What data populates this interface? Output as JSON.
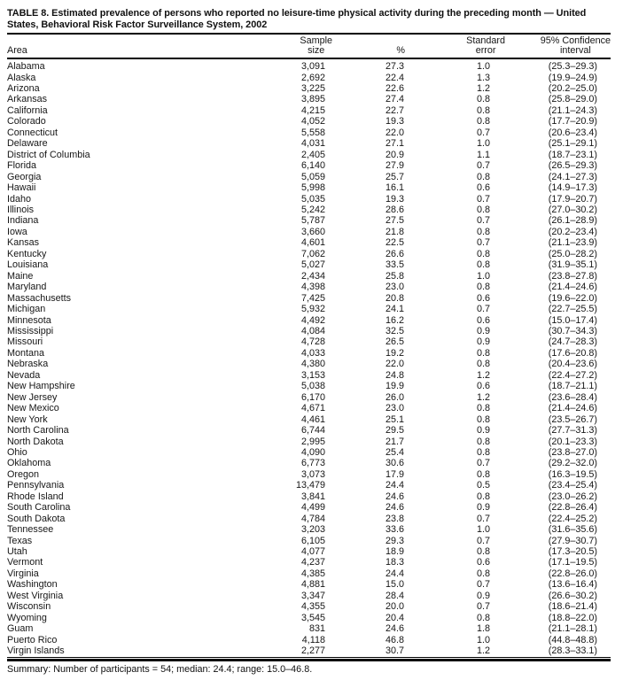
{
  "title": "TABLE 8. Estimated prevalence of persons who reported no leisure-time physical activity during the preceding month — United\nStates, Behavioral Risk Factor Surveillance System, 2002",
  "table": {
    "columns": {
      "area": "Area",
      "sample_size": "Sample\nsize",
      "percent": "%",
      "standard_error": "Standard\nerror",
      "confidence_interval": "95% Confidence\ninterval"
    },
    "rows": [
      {
        "area": "Alabama",
        "sample_size": "3,091",
        "percent": "27.3",
        "standard_error": "1.0",
        "confidence_interval": "(25.3–29.3)"
      },
      {
        "area": "Alaska",
        "sample_size": "2,692",
        "percent": "22.4",
        "standard_error": "1.3",
        "confidence_interval": "(19.9–24.9)"
      },
      {
        "area": "Arizona",
        "sample_size": "3,225",
        "percent": "22.6",
        "standard_error": "1.2",
        "confidence_interval": "(20.2–25.0)"
      },
      {
        "area": "Arkansas",
        "sample_size": "3,895",
        "percent": "27.4",
        "standard_error": "0.8",
        "confidence_interval": "(25.8–29.0)"
      },
      {
        "area": "California",
        "sample_size": "4,215",
        "percent": "22.7",
        "standard_error": "0.8",
        "confidence_interval": "(21.1–24.3)"
      },
      {
        "area": "Colorado",
        "sample_size": "4,052",
        "percent": "19.3",
        "standard_error": "0.8",
        "confidence_interval": "(17.7–20.9)"
      },
      {
        "area": "Connecticut",
        "sample_size": "5,558",
        "percent": "22.0",
        "standard_error": "0.7",
        "confidence_interval": "(20.6–23.4)"
      },
      {
        "area": "Delaware",
        "sample_size": "4,031",
        "percent": "27.1",
        "standard_error": "1.0",
        "confidence_interval": "(25.1–29.1)"
      },
      {
        "area": "District of Columbia",
        "sample_size": "2,405",
        "percent": "20.9",
        "standard_error": "1.1",
        "confidence_interval": "(18.7–23.1)"
      },
      {
        "area": "Florida",
        "sample_size": "6,140",
        "percent": "27.9",
        "standard_error": "0.7",
        "confidence_interval": "(26.5–29.3)"
      },
      {
        "area": "Georgia",
        "sample_size": "5,059",
        "percent": "25.7",
        "standard_error": "0.8",
        "confidence_interval": "(24.1–27.3)"
      },
      {
        "area": "Hawaii",
        "sample_size": "5,998",
        "percent": "16.1",
        "standard_error": "0.6",
        "confidence_interval": "(14.9–17.3)"
      },
      {
        "area": "Idaho",
        "sample_size": "5,035",
        "percent": "19.3",
        "standard_error": "0.7",
        "confidence_interval": "(17.9–20.7)"
      },
      {
        "area": "Illinois",
        "sample_size": "5,242",
        "percent": "28.6",
        "standard_error": "0.8",
        "confidence_interval": "(27.0–30.2)"
      },
      {
        "area": "Indiana",
        "sample_size": "5,787",
        "percent": "27.5",
        "standard_error": "0.7",
        "confidence_interval": "(26.1–28.9)"
      },
      {
        "area": "Iowa",
        "sample_size": "3,660",
        "percent": "21.8",
        "standard_error": "0.8",
        "confidence_interval": "(20.2–23.4)"
      },
      {
        "area": "Kansas",
        "sample_size": "4,601",
        "percent": "22.5",
        "standard_error": "0.7",
        "confidence_interval": "(21.1–23.9)"
      },
      {
        "area": "Kentucky",
        "sample_size": "7,062",
        "percent": "26.6",
        "standard_error": "0.8",
        "confidence_interval": "(25.0–28.2)"
      },
      {
        "area": "Louisiana",
        "sample_size": "5,027",
        "percent": "33.5",
        "standard_error": "0.8",
        "confidence_interval": "(31.9–35.1)"
      },
      {
        "area": "Maine",
        "sample_size": "2,434",
        "percent": "25.8",
        "standard_error": "1.0",
        "confidence_interval": "(23.8–27.8)"
      },
      {
        "area": "Maryland",
        "sample_size": "4,398",
        "percent": "23.0",
        "standard_error": "0.8",
        "confidence_interval": "(21.4–24.6)"
      },
      {
        "area": "Massachusetts",
        "sample_size": "7,425",
        "percent": "20.8",
        "standard_error": "0.6",
        "confidence_interval": "(19.6–22.0)"
      },
      {
        "area": "Michigan",
        "sample_size": "5,932",
        "percent": "24.1",
        "standard_error": "0.7",
        "confidence_interval": "(22.7–25.5)"
      },
      {
        "area": "Minnesota",
        "sample_size": "4,492",
        "percent": "16.2",
        "standard_error": "0.6",
        "confidence_interval": "(15.0–17.4)"
      },
      {
        "area": "Mississippi",
        "sample_size": "4,084",
        "percent": "32.5",
        "standard_error": "0.9",
        "confidence_interval": "(30.7–34.3)"
      },
      {
        "area": "Missouri",
        "sample_size": "4,728",
        "percent": "26.5",
        "standard_error": "0.9",
        "confidence_interval": "(24.7–28.3)"
      },
      {
        "area": "Montana",
        "sample_size": "4,033",
        "percent": "19.2",
        "standard_error": "0.8",
        "confidence_interval": "(17.6–20.8)"
      },
      {
        "area": "Nebraska",
        "sample_size": "4,380",
        "percent": "22.0",
        "standard_error": "0.8",
        "confidence_interval": "(20.4–23.6)"
      },
      {
        "area": "Nevada",
        "sample_size": "3,153",
        "percent": "24.8",
        "standard_error": "1.2",
        "confidence_interval": "(22.4–27.2)"
      },
      {
        "area": "New Hampshire",
        "sample_size": "5,038",
        "percent": "19.9",
        "standard_error": "0.6",
        "confidence_interval": "(18.7–21.1)"
      },
      {
        "area": "New Jersey",
        "sample_size": "6,170",
        "percent": "26.0",
        "standard_error": "1.2",
        "confidence_interval": "(23.6–28.4)"
      },
      {
        "area": "New Mexico",
        "sample_size": "4,671",
        "percent": "23.0",
        "standard_error": "0.8",
        "confidence_interval": "(21.4–24.6)"
      },
      {
        "area": "New York",
        "sample_size": "4,461",
        "percent": "25.1",
        "standard_error": "0.8",
        "confidence_interval": "(23.5–26.7)"
      },
      {
        "area": "North Carolina",
        "sample_size": "6,744",
        "percent": "29.5",
        "standard_error": "0.9",
        "confidence_interval": "(27.7–31.3)"
      },
      {
        "area": "North Dakota",
        "sample_size": "2,995",
        "percent": "21.7",
        "standard_error": "0.8",
        "confidence_interval": "(20.1–23.3)"
      },
      {
        "area": "Ohio",
        "sample_size": "4,090",
        "percent": "25.4",
        "standard_error": "0.8",
        "confidence_interval": "(23.8–27.0)"
      },
      {
        "area": "Oklahoma",
        "sample_size": "6,773",
        "percent": "30.6",
        "standard_error": "0.7",
        "confidence_interval": "(29.2–32.0)"
      },
      {
        "area": "Oregon",
        "sample_size": "3,073",
        "percent": "17.9",
        "standard_error": "0.8",
        "confidence_interval": "(16.3–19.5)"
      },
      {
        "area": "Pennsylvania",
        "sample_size": "13,479",
        "percent": "24.4",
        "standard_error": "0.5",
        "confidence_interval": "(23.4–25.4)"
      },
      {
        "area": "Rhode Island",
        "sample_size": "3,841",
        "percent": "24.6",
        "standard_error": "0.8",
        "confidence_interval": "(23.0–26.2)"
      },
      {
        "area": "South Carolina",
        "sample_size": "4,499",
        "percent": "24.6",
        "standard_error": "0.9",
        "confidence_interval": "(22.8–26.4)"
      },
      {
        "area": "South Dakota",
        "sample_size": "4,784",
        "percent": "23.8",
        "standard_error": "0.7",
        "confidence_interval": "(22.4–25.2)"
      },
      {
        "area": "Tennessee",
        "sample_size": "3,203",
        "percent": "33.6",
        "standard_error": "1.0",
        "confidence_interval": "(31.6–35.6)"
      },
      {
        "area": "Texas",
        "sample_size": "6,105",
        "percent": "29.3",
        "standard_error": "0.7",
        "confidence_interval": "(27.9–30.7)"
      },
      {
        "area": "Utah",
        "sample_size": "4,077",
        "percent": "18.9",
        "standard_error": "0.8",
        "confidence_interval": "(17.3–20.5)"
      },
      {
        "area": "Vermont",
        "sample_size": "4,237",
        "percent": "18.3",
        "standard_error": "0.6",
        "confidence_interval": "(17.1–19.5)"
      },
      {
        "area": "Virginia",
        "sample_size": "4,385",
        "percent": "24.4",
        "standard_error": "0.8",
        "confidence_interval": "(22.8–26.0)"
      },
      {
        "area": "Washington",
        "sample_size": "4,881",
        "percent": "15.0",
        "standard_error": "0.7",
        "confidence_interval": "(13.6–16.4)"
      },
      {
        "area": "West Virginia",
        "sample_size": "3,347",
        "percent": "28.4",
        "standard_error": "0.9",
        "confidence_interval": "(26.6–30.2)"
      },
      {
        "area": "Wisconsin",
        "sample_size": "4,355",
        "percent": "20.0",
        "standard_error": "0.7",
        "confidence_interval": "(18.6–21.4)"
      },
      {
        "area": "Wyoming",
        "sample_size": "3,545",
        "percent": "20.4",
        "standard_error": "0.8",
        "confidence_interval": "(18.8–22.0)"
      },
      {
        "area": "Guam",
        "sample_size": "831",
        "percent": "24.6",
        "standard_error": "1.8",
        "confidence_interval": "(21.1–28.1)"
      },
      {
        "area": "Puerto Rico",
        "sample_size": "4,118",
        "percent": "46.8",
        "standard_error": "1.0",
        "confidence_interval": "(44.8–48.8)"
      },
      {
        "area": "Virgin Islands",
        "sample_size": "2,277",
        "percent": "30.7",
        "standard_error": "1.2",
        "confidence_interval": "(28.3–33.1)"
      }
    ]
  },
  "summary": "Summary: Number of participants = 54; median: 24.4; range: 15.0–46.8."
}
